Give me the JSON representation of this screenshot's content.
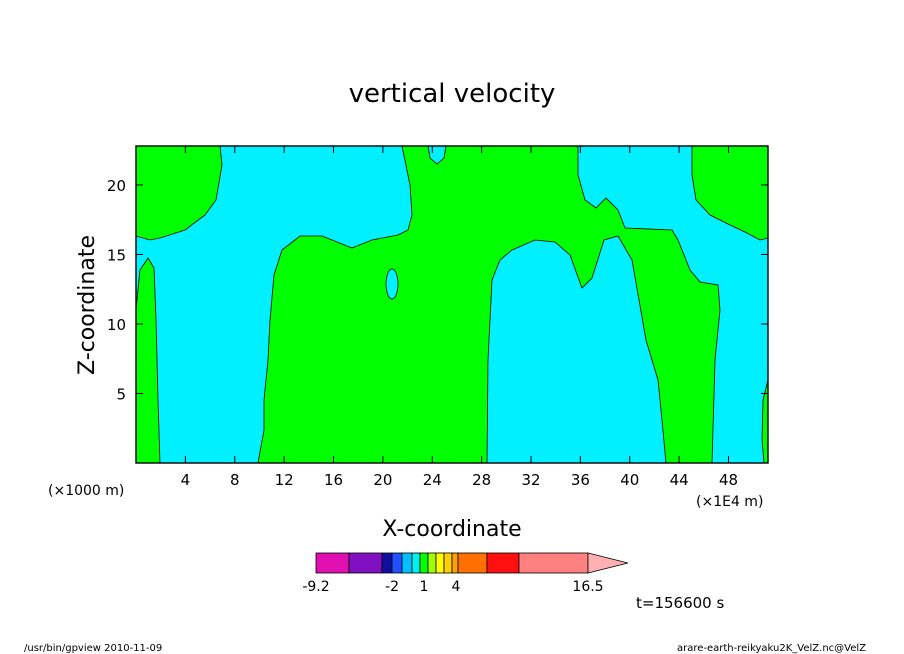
{
  "chart_data": {
    "type": "contour",
    "title": "vertical velocity",
    "xlabel": "X-coordinate",
    "ylabel": "Z-coordinate",
    "x_scale_note": "(×1000 m)",
    "x_unit_note": "(×1E4 m)",
    "xlim": [
      0,
      51.2
    ],
    "ylim": [
      0,
      22.8
    ],
    "x_ticks": [
      4,
      8,
      12,
      16,
      20,
      24,
      28,
      32,
      36,
      40,
      44,
      48
    ],
    "y_ticks": [
      5,
      10,
      15,
      20
    ],
    "colorbar": {
      "colors": [
        "#e010b0",
        "#8010c0",
        "#1010a0",
        "#2050ff",
        "#00c0ff",
        "#00f0f0",
        "#00ff00",
        "#a0ff00",
        "#ffff00",
        "#ffd000",
        "#ffa000",
        "#ff7000",
        "#ff1010",
        "#ff8080",
        "#ffb0b0"
      ],
      "tick_labels": [
        "-9.2",
        "-2",
        "1",
        "4",
        "16.5"
      ]
    },
    "series": [
      {
        "name": "",
        "color": "#00f0ff",
        "regions": "negative vertical velocity (cyan)"
      },
      {
        "name": "",
        "color": "#00ff00",
        "regions": "positive vertical velocity (green)"
      }
    ]
  },
  "time_label": "t=156600 s",
  "footer": {
    "left": "/usr/bin/gpview   2010-11-09",
    "right": "arare-earth-reikyaku2K_VelZ.nc@VelZ"
  }
}
